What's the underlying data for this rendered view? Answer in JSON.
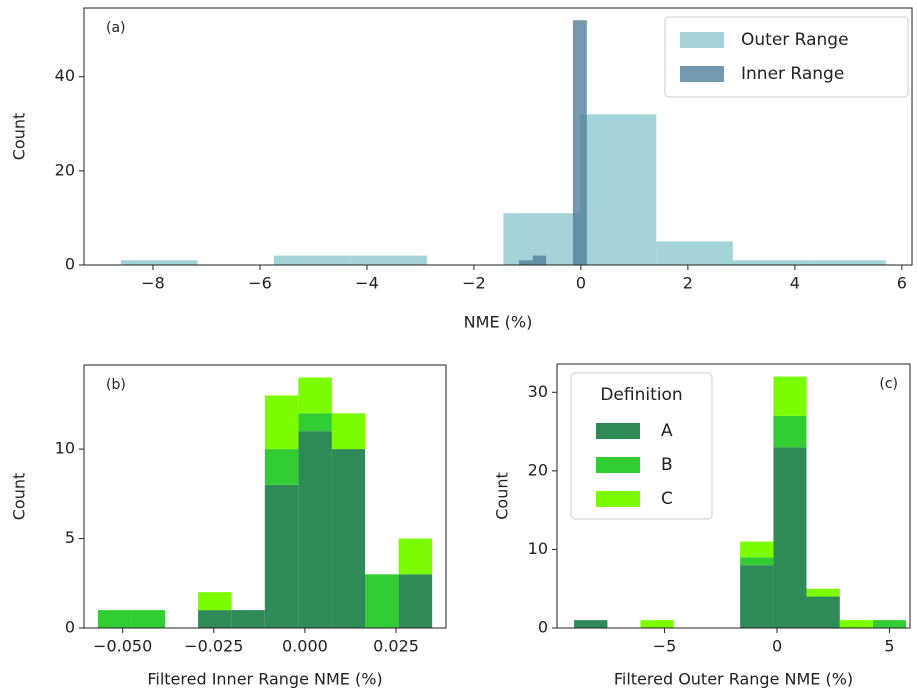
{
  "chart_data": [
    {
      "type": "histogram",
      "annotation": "(a)",
      "xlabel": "NME (%)",
      "ylabel": "Count",
      "xlim": [
        -9.29,
        6.19
      ],
      "ylim": [
        0,
        54.6
      ],
      "xticks": [
        {
          "value": -8,
          "label": "−8"
        },
        {
          "value": -6,
          "label": "−6"
        },
        {
          "value": -4,
          "label": "−4"
        },
        {
          "value": -2,
          "label": "−2"
        },
        0,
        2,
        4,
        6
      ],
      "yticks": [
        0,
        20,
        40
      ],
      "stacked": false,
      "legend": "upper right",
      "series": [
        {
          "name": "Outer Range",
          "color": "#8ec9ce",
          "opacity": 0.8,
          "bins": [
            -8.6,
            -7.17,
            -5.74,
            -4.31,
            -2.88,
            -1.45,
            -0.02,
            1.41,
            2.84,
            4.27,
            5.7
          ],
          "values": [
            1,
            0,
            2,
            2,
            0,
            11,
            32,
            5,
            1,
            1
          ]
        },
        {
          "name": "Inner Range",
          "color": "#4f8099",
          "opacity": 0.8,
          "bins": [
            -1.16,
            -0.9,
            -0.65,
            -0.39,
            -0.15,
            0.11
          ],
          "values": [
            1,
            2,
            0,
            0,
            52
          ]
        }
      ]
    },
    {
      "type": "histogram",
      "annotation": "(b)",
      "xlabel": "Filtered Inner Range NME (%)",
      "ylabel": "Count",
      "xlim": [
        -0.0606,
        0.0387
      ],
      "ylim": [
        0,
        14.7
      ],
      "xticks": [
        {
          "value": -0.05,
          "label": "−0.050"
        },
        {
          "value": -0.025,
          "label": "−0.025"
        },
        {
          "value": 0,
          "label": "0.000"
        },
        {
          "value": 0.025,
          "label": "0.025"
        }
      ],
      "yticks": [
        0,
        5,
        10
      ],
      "stacked": true,
      "bins": [
        -0.0568,
        -0.0476,
        -0.0384,
        -0.0293,
        -0.0201,
        -0.011,
        -0.0018,
        0.0074,
        0.0165,
        0.0257,
        0.0349
      ],
      "series": [
        {
          "name": "A",
          "color": "#2e8b57",
          "values": [
            0,
            0,
            0,
            1,
            1,
            8,
            11,
            10,
            0,
            3
          ]
        },
        {
          "name": "B",
          "color": "#32cd32",
          "values": [
            1,
            1,
            0,
            0,
            0,
            2,
            1,
            0,
            3,
            0
          ]
        },
        {
          "name": "C",
          "color": "#7cfc00",
          "values": [
            0,
            0,
            0,
            1,
            0,
            3,
            2,
            2,
            0,
            2
          ]
        }
      ]
    },
    {
      "type": "histogram",
      "annotation": "(c)",
      "xlabel": "Filtered Outer Range NME (%)",
      "ylabel": "Count",
      "xlim": [
        -9.78,
        5.91
      ],
      "ylim": [
        0,
        33.6
      ],
      "xticks": [
        {
          "value": -5,
          "label": "−5"
        },
        0,
        5
      ],
      "yticks": [
        0,
        10,
        20,
        30
      ],
      "stacked": true,
      "legend": "upper left",
      "legend_title": "Definition",
      "bins": [
        -9.02,
        -7.54,
        -6.07,
        -4.59,
        -3.12,
        -1.64,
        -0.16,
        1.31,
        2.79,
        4.26,
        5.74
      ],
      "series": [
        {
          "name": "A",
          "color": "#2e8b57",
          "values": [
            1,
            0,
            0,
            0,
            0,
            8,
            23,
            4,
            0,
            0
          ]
        },
        {
          "name": "B",
          "color": "#32cd32",
          "values": [
            0,
            0,
            0,
            0,
            0,
            1,
            4,
            0,
            0,
            1
          ]
        },
        {
          "name": "C",
          "color": "#7cfc00",
          "values": [
            0,
            0,
            1,
            0,
            0,
            2,
            5,
            1,
            1,
            0
          ]
        }
      ]
    }
  ]
}
